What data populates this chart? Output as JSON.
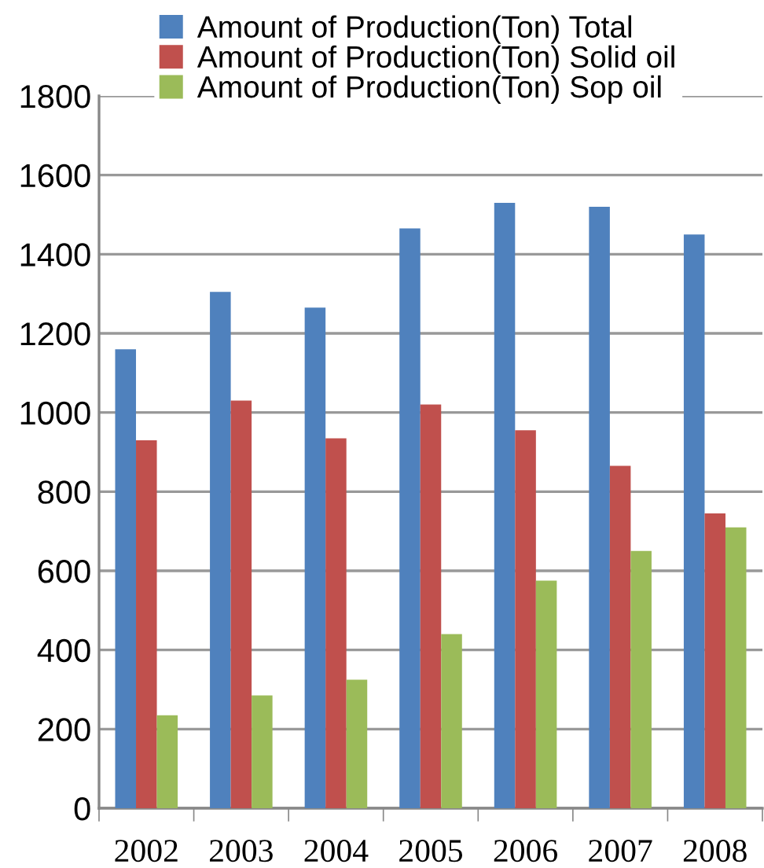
{
  "chart_data": {
    "type": "bar",
    "categories": [
      "2002",
      "2003",
      "2004",
      "2005",
      "2006",
      "2007",
      "2008"
    ],
    "series": [
      {
        "name": "Amount of Production(Ton) Total",
        "color": "#4f81bd",
        "values": [
          1160,
          1305,
          1265,
          1465,
          1530,
          1520,
          1450
        ]
      },
      {
        "name": "Amount of Production(Ton) Solid oil",
        "color": "#c0504d",
        "values": [
          930,
          1030,
          935,
          1020,
          955,
          865,
          745
        ]
      },
      {
        "name": "Amount of Production(Ton) Sop oil",
        "color": "#9bbb59",
        "values": [
          235,
          285,
          325,
          440,
          575,
          650,
          710
        ]
      }
    ],
    "ylim": [
      0,
      1800
    ],
    "yticks": [
      0,
      200,
      400,
      600,
      800,
      1000,
      1200,
      1400,
      1600,
      1800
    ],
    "grid": "y",
    "legend": "top"
  }
}
